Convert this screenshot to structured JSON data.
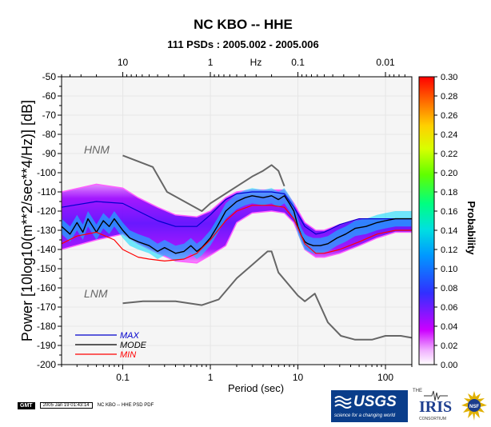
{
  "title": "NC KBO -- HHE",
  "subtitle": "111 PSDs : 2005.002 - 2005.006",
  "top_axis": {
    "unit_label": "Hz",
    "ticks": [
      "10",
      "1",
      "0.1",
      "0.01"
    ]
  },
  "chart_data": {
    "type": "heatmap",
    "title": "NC KBO -- HHE",
    "subtitle": "111 PSDs : 2005.002 - 2005.006",
    "xlabel": "Period (sec)",
    "ylabel": "Power [10log10(m**2/sec**4/Hz)] [dB]",
    "x_scale": "log",
    "xlim": [
      0.02,
      200
    ],
    "ylim": [
      -200,
      -50
    ],
    "x_ticks": [
      "0.1",
      "1",
      "10",
      "100"
    ],
    "y_ticks": [
      "-50",
      "-60",
      "-70",
      "-80",
      "-90",
      "-100",
      "-110",
      "-120",
      "-130",
      "-140",
      "-150",
      "-160",
      "-170",
      "-180",
      "-190",
      "-200"
    ],
    "colorbar": {
      "label": "Probability",
      "range": [
        0,
        0.3
      ],
      "ticks": [
        "0.00",
        "0.02",
        "0.04",
        "0.06",
        "0.08",
        "0.10",
        "0.12",
        "0.14",
        "0.16",
        "0.18",
        "0.20",
        "0.22",
        "0.24",
        "0.26",
        "0.28",
        "0.30"
      ]
    },
    "annotations": [
      "HNM",
      "LNM"
    ],
    "legend": {
      "position": "bottom-left",
      "entries": [
        {
          "name": "MAX",
          "color": "#0000cc"
        },
        {
          "name": "MODE",
          "color": "#000000"
        },
        {
          "name": "MIN",
          "color": "#ff0000"
        }
      ]
    },
    "series": [
      {
        "name": "HNM",
        "color": "#666666",
        "x": [
          0.1,
          0.22,
          0.32,
          0.8,
          1,
          3,
          4,
          5,
          6,
          7
        ],
        "y": [
          -91,
          -97,
          -110,
          -120,
          -116,
          -102,
          -99,
          -96,
          -99,
          -107
        ]
      },
      {
        "name": "LNM",
        "color": "#666666",
        "x": [
          0.1,
          0.17,
          0.4,
          0.8,
          1.25,
          2,
          3,
          4.5,
          5,
          6,
          10,
          12,
          15.6,
          22,
          31,
          45,
          70,
          100,
          150,
          200
        ],
        "y": [
          -168,
          -167,
          -167,
          -169,
          -166,
          -155,
          -148,
          -141,
          -141,
          -152,
          -164,
          -167,
          -163,
          -178,
          -185,
          -187,
          -187,
          -185,
          -185,
          -186
        ]
      },
      {
        "name": "MAX",
        "color": "#0000cc",
        "x": [
          0.02,
          0.05,
          0.1,
          0.15,
          0.25,
          0.4,
          0.7,
          1,
          1.5,
          2,
          3,
          5,
          7,
          9,
          12,
          16,
          20,
          30,
          50,
          80,
          130,
          200
        ],
        "y": [
          -118,
          -115,
          -116,
          -120,
          -125,
          -128,
          -128,
          -122,
          -114,
          -111,
          -110,
          -110,
          -111,
          -118,
          -128,
          -132,
          -131,
          -127,
          -124,
          -124,
          -124,
          -124
        ]
      },
      {
        "name": "MODE",
        "color": "#000000",
        "x": [
          0.02,
          0.025,
          0.03,
          0.035,
          0.04,
          0.05,
          0.06,
          0.07,
          0.08,
          0.1,
          0.12,
          0.15,
          0.2,
          0.25,
          0.3,
          0.4,
          0.5,
          0.6,
          0.7,
          0.8,
          1,
          1.2,
          1.5,
          2,
          2.5,
          3,
          4,
          5,
          6,
          7,
          8,
          9,
          10,
          11,
          12,
          13,
          15,
          18,
          22,
          28,
          35,
          45,
          60,
          80,
          100,
          130,
          160,
          200
        ],
        "y": [
          -128,
          -132,
          -126,
          -131,
          -124,
          -131,
          -125,
          -128,
          -124,
          -130,
          -134,
          -136,
          -138,
          -141,
          -139,
          -142,
          -141,
          -138,
          -141,
          -139,
          -134,
          -128,
          -120,
          -115,
          -113,
          -112,
          -113,
          -112,
          -114,
          -112,
          -116,
          -120,
          -128,
          -133,
          -136,
          -137,
          -138,
          -138,
          -137,
          -134,
          -132,
          -129,
          -128,
          -126,
          -125,
          -124,
          -124,
          -124
        ]
      },
      {
        "name": "MIN",
        "color": "#ff0000",
        "x": [
          0.02,
          0.03,
          0.05,
          0.08,
          0.1,
          0.15,
          0.2,
          0.3,
          0.5,
          0.7,
          1,
          1.5,
          2,
          3,
          5,
          7,
          9,
          12,
          16,
          20,
          30,
          50,
          80,
          130,
          200
        ],
        "y": [
          -137,
          -133,
          -131,
          -135,
          -140,
          -144,
          -145,
          -146,
          -145,
          -142,
          -135,
          -125,
          -120,
          -117,
          -117,
          -118,
          -124,
          -137,
          -142,
          -142,
          -140,
          -136,
          -132,
          -130,
          -130
        ]
      }
    ],
    "pdf_bands": [
      {
        "x": [
          0.02,
          0.05,
          0.1,
          0.15,
          0.25,
          0.4,
          0.7,
          1,
          1.5,
          2,
          3,
          5,
          7,
          9,
          12,
          16,
          20,
          30,
          50,
          80,
          130,
          200
        ],
        "upper": [
          -110,
          -106,
          -108,
          -113,
          -118,
          -122,
          -123,
          -120,
          -113,
          -110,
          -109,
          -109,
          -109,
          -116,
          -126,
          -130,
          -130,
          -127,
          -124,
          -124,
          -124,
          -124
        ],
        "lower": [
          -140,
          -135,
          -132,
          -137,
          -142,
          -146,
          -147,
          -143,
          -138,
          -126,
          -121,
          -120,
          -121,
          -126,
          -140,
          -144,
          -144,
          -142,
          -138,
          -134,
          -131,
          -131
        ]
      }
    ]
  },
  "legend_labels": {
    "max": "MAX",
    "mode": "MODE",
    "min": "MIN"
  },
  "footer": {
    "gmt": "GMT",
    "timestamp": "2005 Jan 19 01:43:14",
    "caption": "NC KBO -- HHE PSD PDF"
  },
  "logos": {
    "usgs": {
      "name": "USGS",
      "tagline": "science for a changing world"
    },
    "iris": {
      "the": "THE",
      "name": "IRIS",
      "consortium": "CONSORTIUM"
    },
    "nsf": {
      "name": "NSF"
    }
  },
  "colors": {
    "hnm_lnm": "#666666",
    "max": "#0000cc",
    "mode": "#000000",
    "min": "#ff0000",
    "plot_bg": "#f5f5f5"
  }
}
